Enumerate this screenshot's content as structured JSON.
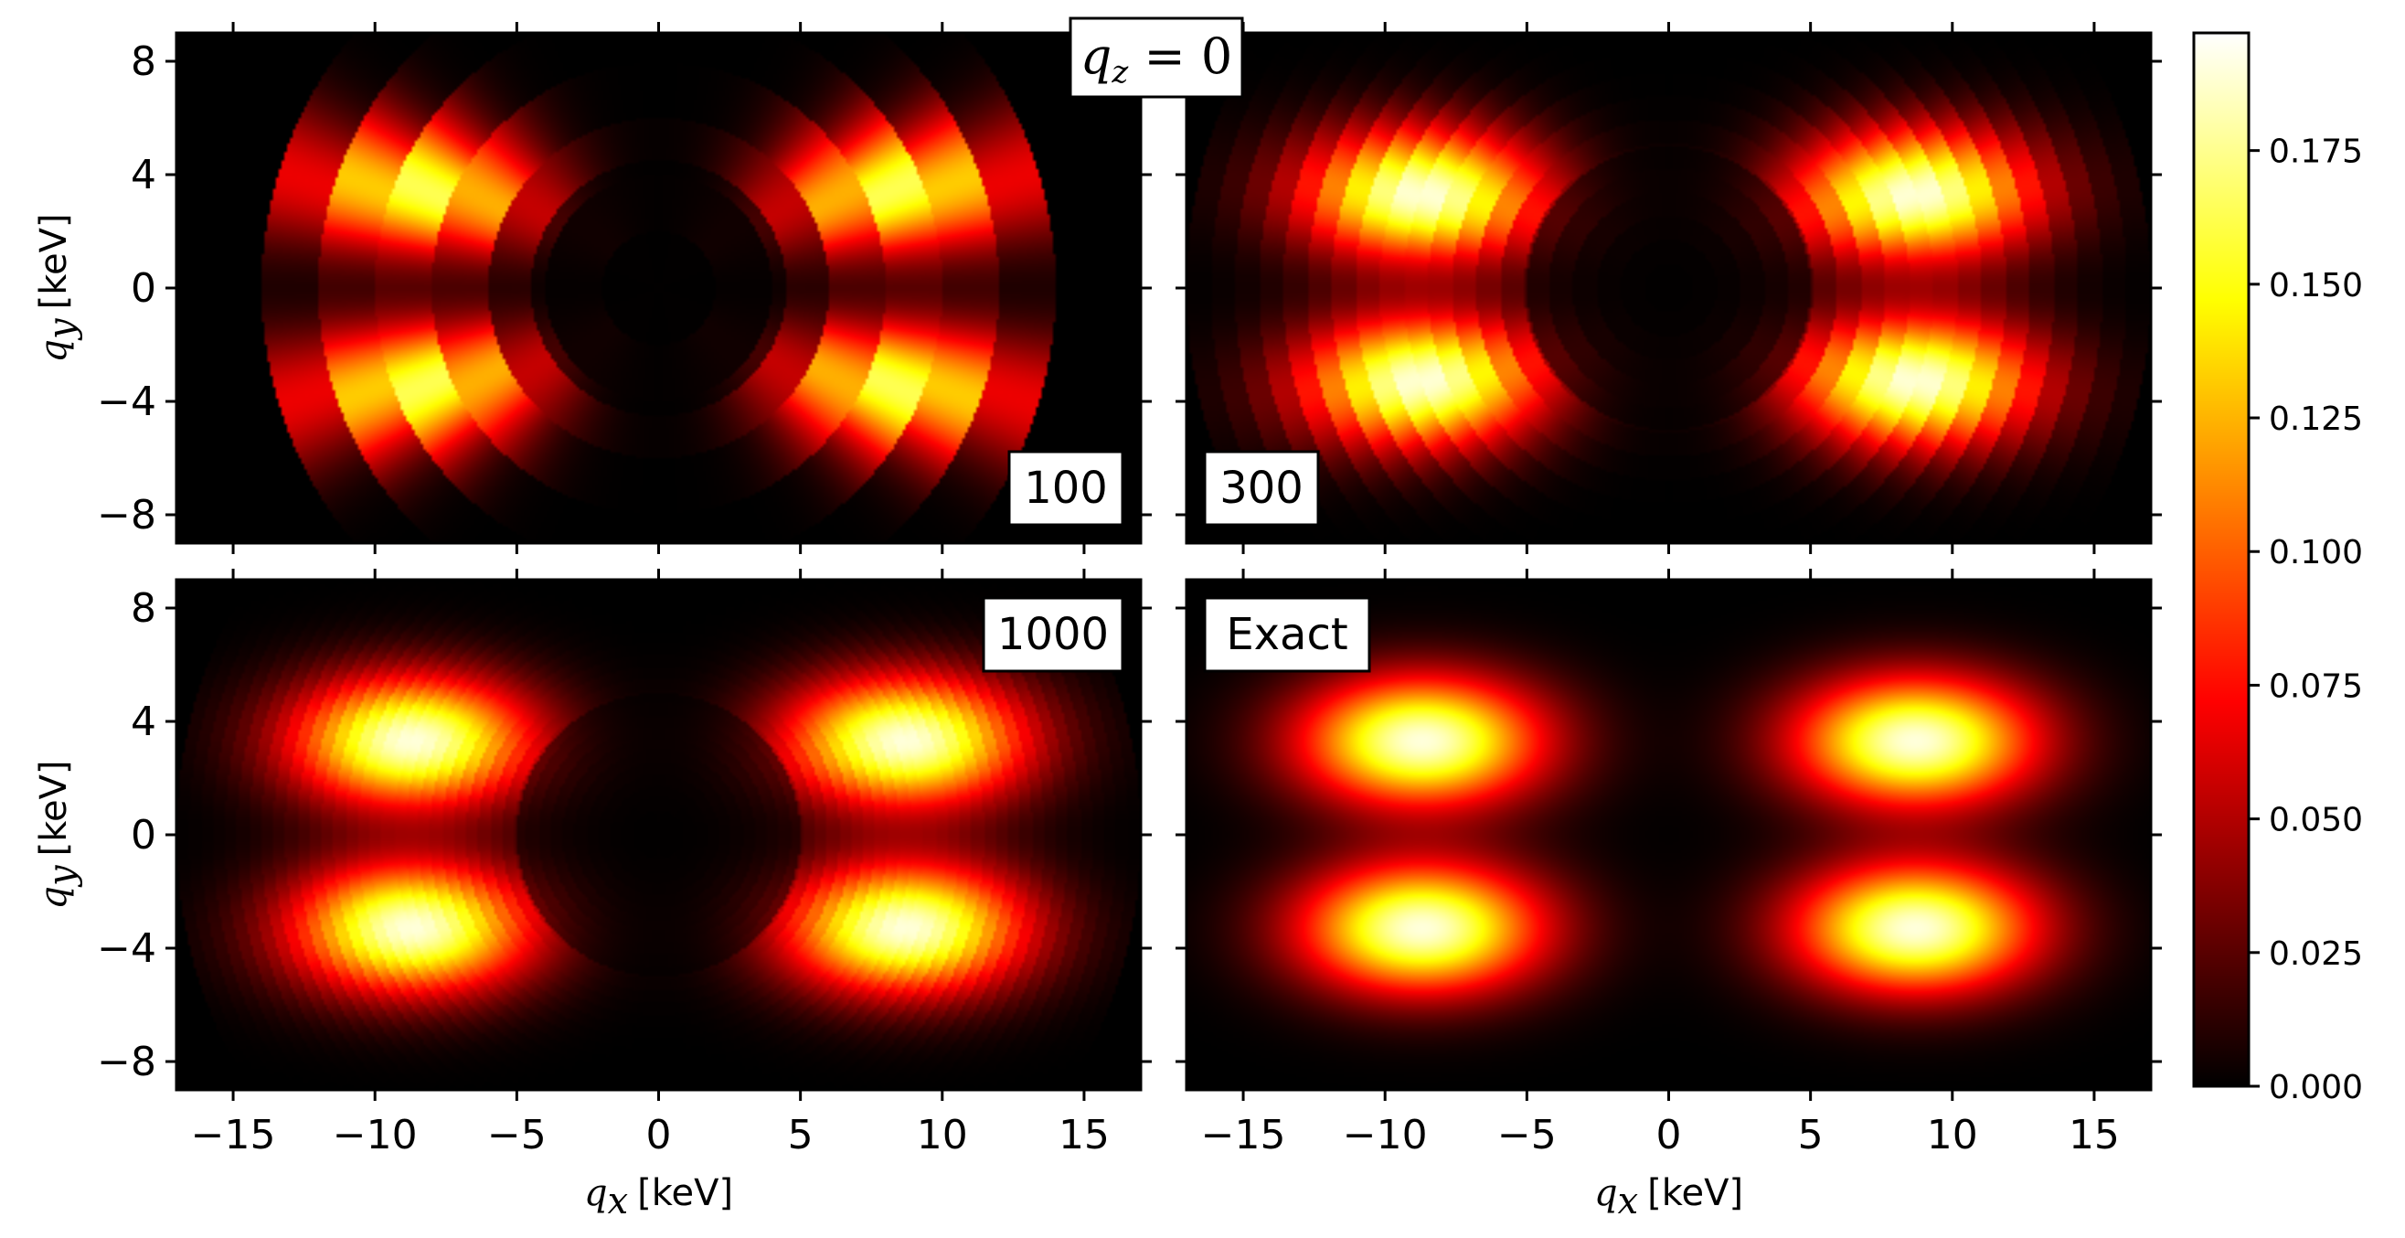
{
  "chart_data": {
    "type": "heatmap",
    "title": "q_z = 0",
    "title_parts": {
      "var": "q",
      "sub": "z",
      "rest": " = 0"
    },
    "colormap": "hot",
    "colorbar": {
      "ticks": [
        0.0,
        0.025,
        0.05,
        0.075,
        0.1,
        0.125,
        0.15,
        0.175
      ],
      "tick_labels": [
        "0.000",
        "0.025",
        "0.050",
        "0.075",
        "0.100",
        "0.125",
        "0.150",
        "0.175"
      ],
      "range": [
        0,
        0.197
      ]
    },
    "xlabel": {
      "var": "q",
      "sub": "x",
      "unit": "[keV]"
    },
    "ylabel": {
      "var": "q",
      "sub": "y",
      "unit": "[keV]"
    },
    "xlim": [
      -17,
      17
    ],
    "ylim": [
      -9,
      9
    ],
    "xticks": [
      -15,
      -10,
      -5,
      0,
      5,
      10,
      15
    ],
    "xtick_labels": [
      "−15",
      "−10",
      "−5",
      "0",
      "5",
      "10",
      "15"
    ],
    "yticks": [
      8,
      4,
      0,
      -4,
      -8
    ],
    "ytick_labels": [
      "8",
      "4",
      "0",
      "−4",
      "−8"
    ],
    "peaks": [
      [
        8.7,
        3.3
      ],
      [
        -8.7,
        3.3
      ],
      [
        8.7,
        -3.3
      ],
      [
        -8.7,
        -3.3
      ]
    ],
    "peak_value": 0.19,
    "panels": [
      {
        "label": "100",
        "row": 0,
        "col": 0,
        "tag_corner": "bottom-right",
        "radial_bins": 7,
        "r_max": 14
      },
      {
        "label": "300",
        "row": 0,
        "col": 1,
        "tag_corner": "bottom-left",
        "radial_bins": 20,
        "r_max": 17
      },
      {
        "label": "1000",
        "row": 1,
        "col": 0,
        "tag_corner": "top-right",
        "radial_bins": 40,
        "r_max": 17
      },
      {
        "label": "Exact",
        "row": 1,
        "col": 1,
        "tag_corner": "top-left",
        "radial_bins": 0,
        "r_max": 99
      }
    ]
  }
}
